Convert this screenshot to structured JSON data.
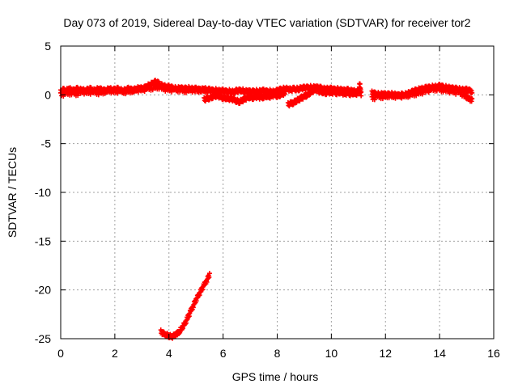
{
  "chart_data": {
    "type": "scatter",
    "title": "Day 073 of 2019, Sidereal Day-to-day VTEC variation (SDTVAR) for receiver tor2",
    "xlabel": "GPS time / hours",
    "ylabel": "SDTVAR / TECUs",
    "xlim": [
      0,
      16
    ],
    "ylim": [
      -25,
      5
    ],
    "xticks": [
      0,
      2,
      4,
      6,
      8,
      10,
      12,
      14,
      16
    ],
    "yticks": [
      -25,
      -20,
      -15,
      -10,
      -5,
      0,
      5
    ],
    "grid": true,
    "marker_color": "#ff0000",
    "series": [
      {
        "x": [
          0.0,
          0.1,
          0.2,
          0.3,
          0.4,
          0.5,
          0.6,
          0.7,
          0.8,
          0.9,
          1.0,
          1.1,
          1.2,
          1.3,
          1.4,
          1.5,
          1.6,
          1.7,
          1.8,
          1.9,
          2.0,
          2.1,
          2.2,
          2.3,
          2.4,
          2.5,
          2.6,
          2.7,
          2.8,
          2.9,
          3.0,
          3.1,
          3.2,
          3.3,
          3.4,
          3.5,
          3.6,
          3.7,
          3.8,
          3.9,
          4.0,
          4.1,
          4.2,
          4.3,
          4.4,
          4.5,
          4.6,
          4.7,
          4.8,
          4.9,
          5.0,
          5.1,
          5.2,
          5.3,
          5.4,
          5.5,
          5.6,
          5.7,
          5.8,
          5.9,
          6.0,
          6.1,
          6.2,
          6.3,
          6.4,
          6.5,
          6.6,
          6.7,
          6.8,
          6.9,
          7.0,
          7.1,
          7.2,
          7.3,
          7.4,
          7.5,
          7.6,
          7.7,
          7.8,
          7.9,
          8.0,
          8.1,
          8.2,
          8.3,
          8.4,
          8.5,
          8.6,
          8.7,
          8.8,
          8.9,
          9.0,
          9.1,
          9.2,
          9.3,
          9.4,
          9.5,
          9.6,
          9.7,
          9.8,
          9.9,
          10.0,
          10.1,
          10.2,
          10.3,
          10.4,
          10.5,
          10.6,
          10.7,
          10.8,
          10.9,
          11.0,
          11.1
        ],
        "y": [
          0.3,
          0.5,
          0.4,
          0.6,
          0.5,
          0.4,
          0.6,
          0.5,
          0.5,
          0.4,
          0.5,
          0.6,
          0.4,
          0.5,
          0.6,
          0.5,
          0.4,
          0.5,
          0.6,
          0.5,
          0.5,
          0.6,
          0.5,
          0.4,
          0.5,
          0.6,
          0.5,
          0.5,
          0.6,
          0.7,
          0.6,
          0.7,
          0.9,
          1.0,
          1.2,
          1.3,
          1.2,
          1.0,
          0.9,
          0.8,
          0.8,
          0.7,
          0.7,
          0.6,
          0.7,
          0.6,
          0.6,
          0.7,
          0.6,
          0.6,
          0.6,
          0.5,
          0.5,
          0.6,
          0.5,
          0.5,
          0.4,
          0.5,
          0.4,
          0.4,
          0.4,
          0.3,
          0.4,
          0.3,
          0.3,
          0.4,
          0.4,
          0.5,
          0.3,
          0.4,
          0.3,
          0.3,
          0.4,
          0.3,
          0.4,
          0.4,
          0.3,
          0.4,
          0.3,
          0.3,
          0.4,
          0.5,
          0.6,
          0.6,
          0.6,
          0.5,
          0.6,
          0.6,
          0.6,
          0.7,
          0.7,
          0.7,
          0.8,
          0.7,
          0.8,
          0.7,
          0.7,
          0.6,
          0.6,
          0.6,
          0.6,
          0.5,
          0.6,
          0.5,
          0.5,
          0.4,
          0.5,
          0.4,
          0.4,
          0.3,
          0.4,
          0.3
        ]
      },
      {
        "x": [
          0.0,
          0.2,
          0.4,
          0.6,
          0.8,
          1.0,
          1.2,
          1.4,
          1.6,
          1.8,
          2.0,
          2.2,
          2.4,
          2.6,
          2.8,
          3.0,
          3.2,
          3.4,
          3.6,
          3.8,
          4.0,
          4.2,
          4.4,
          4.6,
          4.8,
          5.0,
          5.2,
          5.4
        ],
        "y": [
          0.0,
          0.1,
          0.2,
          0.1,
          0.3,
          0.2,
          0.3,
          0.2,
          0.3,
          0.4,
          0.3,
          0.4,
          0.3,
          0.4,
          0.5,
          0.5,
          0.6,
          0.7,
          0.8,
          0.6,
          0.5,
          0.5,
          0.5,
          0.4,
          0.5,
          0.4,
          0.5,
          0.4
        ]
      },
      {
        "x": [
          5.3,
          5.4,
          5.5,
          5.6,
          5.7,
          5.8,
          5.9,
          6.0,
          6.1,
          6.2,
          6.3,
          6.4,
          6.5,
          6.6,
          6.7,
          6.8,
          6.9,
          7.0,
          7.1,
          7.2,
          7.3,
          7.4,
          7.5,
          7.6,
          7.7,
          7.8,
          7.9,
          8.0,
          8.1,
          8.2,
          8.3
        ],
        "y": [
          -0.5,
          -0.4,
          -0.3,
          -0.2,
          -0.1,
          -0.1,
          -0.2,
          -0.3,
          -0.3,
          -0.4,
          -0.4,
          -0.5,
          -0.6,
          -0.7,
          -0.6,
          -0.4,
          -0.3,
          -0.2,
          -0.3,
          -0.2,
          -0.2,
          -0.3,
          -0.2,
          -0.1,
          -0.2,
          -0.1,
          0.0,
          -0.1,
          0.0,
          0.1,
          0.2
        ]
      },
      {
        "x": [
          8.4,
          8.5,
          8.6,
          8.7,
          8.8,
          8.9,
          9.0,
          9.1,
          9.2,
          9.3,
          9.4,
          9.5
        ],
        "y": [
          -1.0,
          -0.9,
          -0.8,
          -0.6,
          -0.5,
          -0.3,
          -0.2,
          0.0,
          0.2,
          0.4,
          0.5,
          0.6
        ]
      },
      {
        "x": [
          9.5,
          9.6,
          9.7,
          9.8,
          9.9,
          10.0,
          10.1,
          10.2,
          10.3,
          10.4,
          10.5,
          10.6,
          10.7,
          10.8,
          10.9,
          11.0,
          11.05,
          11.1
        ],
        "y": [
          0.4,
          0.3,
          0.3,
          0.2,
          0.3,
          0.2,
          0.3,
          0.2,
          0.3,
          0.2,
          0.1,
          0.2,
          0.1,
          0.2,
          0.1,
          0.2,
          1.1,
          0.1
        ]
      },
      {
        "x": [
          11.5,
          11.6,
          11.7,
          11.8,
          11.9,
          12.0,
          12.1,
          12.2,
          12.3,
          12.4,
          12.5,
          12.6,
          12.7,
          12.8,
          12.9,
          13.0,
          13.1,
          13.2,
          13.3,
          13.4,
          13.5,
          13.6,
          13.7,
          13.8,
          13.9,
          14.0,
          14.1,
          14.2,
          14.3,
          14.4,
          14.5,
          14.6,
          14.7,
          14.8,
          14.9,
          15.0,
          15.1,
          15.2
        ],
        "y": [
          0.2,
          0.1,
          0.1,
          0.0,
          0.1,
          0.0,
          0.0,
          0.1,
          0.0,
          0.0,
          -0.1,
          0.0,
          0.0,
          0.1,
          0.2,
          0.3,
          0.4,
          0.5,
          0.6,
          0.6,
          0.7,
          0.7,
          0.8,
          0.8,
          0.8,
          0.9,
          0.8,
          0.8,
          0.7,
          0.7,
          0.6,
          0.6,
          0.6,
          0.5,
          0.5,
          0.5,
          0.4,
          0.4
        ]
      },
      {
        "x": [
          11.5,
          11.7,
          11.9,
          12.1,
          12.3,
          12.5,
          12.7,
          12.9,
          13.1,
          13.3,
          13.5,
          13.7,
          13.9,
          14.1,
          14.3,
          14.5,
          14.7,
          14.9,
          15.0,
          15.1,
          15.2
        ],
        "y": [
          -0.4,
          -0.2,
          -0.2,
          -0.1,
          -0.2,
          -0.1,
          -0.2,
          0.0,
          0.1,
          0.2,
          0.4,
          0.5,
          0.6,
          0.5,
          0.4,
          0.3,
          0.2,
          0.0,
          -0.2,
          -0.4,
          -0.6
        ]
      },
      {
        "x": [
          3.7,
          3.8,
          3.9,
          4.0,
          4.1,
          4.2,
          4.3,
          4.4,
          4.5,
          4.6,
          4.7,
          4.8,
          4.9,
          5.0,
          5.1,
          5.2,
          5.3,
          5.4,
          5.5
        ],
        "y": [
          -24.3,
          -24.5,
          -24.6,
          -24.7,
          -24.8,
          -24.7,
          -24.5,
          -24.2,
          -23.8,
          -23.4,
          -22.8,
          -22.2,
          -21.6,
          -21.0,
          -20.5,
          -20.0,
          -19.5,
          -19.0,
          -18.4
        ]
      }
    ]
  }
}
